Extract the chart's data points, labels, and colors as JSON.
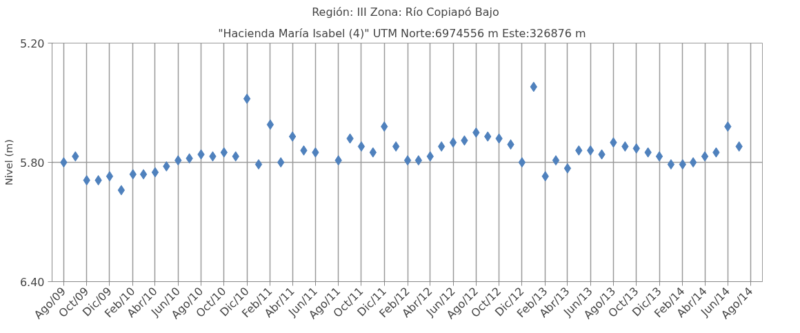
{
  "chart_data": {
    "type": "scatter",
    "title": "Región: III  Zona: Río Copiapó Bajo",
    "subtitle": "\"Hacienda María Isabel (4)\"  UTM Norte:6974556 m   Este:326876 m",
    "ylabel": "Nivel (m)",
    "x": [
      "2009-08",
      "2009-09",
      "2009-10",
      "2009-11",
      "2009-12",
      "2010-01",
      "2010-02",
      "2010-03",
      "2010-04",
      "2010-05",
      "2010-06",
      "2010-07",
      "2010-08",
      "2010-09",
      "2010-10",
      "2010-11",
      "2010-12",
      "2011-01",
      "2011-02",
      "2011-03",
      "2011-04",
      "2011-05",
      "2011-06",
      "2011-07",
      "2011-08",
      "2011-09",
      "2011-10",
      "2011-11",
      "2011-12",
      "2012-01",
      "2012-02",
      "2012-03",
      "2012-04",
      "2012-05",
      "2012-06",
      "2012-07",
      "2012-08",
      "2012-09",
      "2012-10",
      "2012-11",
      "2012-12",
      "2013-01",
      "2013-02",
      "2013-03",
      "2013-04",
      "2013-05",
      "2013-06",
      "2013-07",
      "2013-08",
      "2013-09",
      "2013-10",
      "2013-11",
      "2013-12",
      "2014-01",
      "2014-02",
      "2014-03",
      "2014-04",
      "2014-05",
      "2014-06",
      "2014-07"
    ],
    "values": [
      5.8,
      5.77,
      5.89,
      5.89,
      5.87,
      5.94,
      5.86,
      5.86,
      5.85,
      5.82,
      5.79,
      5.78,
      5.76,
      5.77,
      5.75,
      5.77,
      5.48,
      5.81,
      5.61,
      5.8,
      5.67,
      5.74,
      5.75,
      null,
      5.79,
      5.68,
      5.72,
      5.75,
      5.62,
      5.72,
      5.79,
      5.79,
      5.77,
      5.72,
      5.7,
      5.69,
      5.65,
      5.67,
      5.68,
      5.71,
      5.8,
      5.42,
      5.87,
      5.79,
      5.83,
      5.74,
      5.74,
      5.76,
      5.7,
      5.72,
      5.73,
      5.75,
      5.77,
      5.81,
      5.81,
      5.8,
      5.77,
      5.75,
      5.62,
      5.72
    ],
    "color": "#4f81bd",
    "marker": "diamond",
    "xlim": [
      "2009-07",
      "2014-09"
    ],
    "xticks": [
      {
        "value": "2009-08",
        "label": "Ago/09"
      },
      {
        "value": "2009-10",
        "label": "Oct/09"
      },
      {
        "value": "2009-12",
        "label": "Dic/09"
      },
      {
        "value": "2010-02",
        "label": "Feb/10"
      },
      {
        "value": "2010-04",
        "label": "Abr/10"
      },
      {
        "value": "2010-06",
        "label": "Jun/10"
      },
      {
        "value": "2010-08",
        "label": "Ago/10"
      },
      {
        "value": "2010-10",
        "label": "Oct/10"
      },
      {
        "value": "2010-12",
        "label": "Dic/10"
      },
      {
        "value": "2011-02",
        "label": "Feb/11"
      },
      {
        "value": "2011-04",
        "label": "Abr/11"
      },
      {
        "value": "2011-06",
        "label": "Jun/11"
      },
      {
        "value": "2011-08",
        "label": "Ago/11"
      },
      {
        "value": "2011-10",
        "label": "Oct/11"
      },
      {
        "value": "2011-12",
        "label": "Dic/11"
      },
      {
        "value": "2012-02",
        "label": "Feb/12"
      },
      {
        "value": "2012-04",
        "label": "Abr/12"
      },
      {
        "value": "2012-06",
        "label": "Jun/12"
      },
      {
        "value": "2012-08",
        "label": "Ago/12"
      },
      {
        "value": "2012-10",
        "label": "Oct/12"
      },
      {
        "value": "2012-12",
        "label": "Dic/12"
      },
      {
        "value": "2013-02",
        "label": "Feb/13"
      },
      {
        "value": "2013-04",
        "label": "Abr/13"
      },
      {
        "value": "2013-06",
        "label": "Jun/13"
      },
      {
        "value": "2013-08",
        "label": "Ago/13"
      },
      {
        "value": "2013-10",
        "label": "Oct/13"
      },
      {
        "value": "2013-12",
        "label": "Dic/13"
      },
      {
        "value": "2014-02",
        "label": "Feb/14"
      },
      {
        "value": "2014-04",
        "label": "Abr/14"
      },
      {
        "value": "2014-06",
        "label": "Jun/14"
      },
      {
        "value": "2014-08",
        "label": "Ago/14"
      }
    ],
    "ylim": [
      6.4,
      5.2
    ],
    "yticks": [
      {
        "value": 5.2,
        "label": "5.20"
      },
      {
        "value": 5.8,
        "label": "5.80"
      },
      {
        "value": 6.4,
        "label": "6.40"
      }
    ],
    "grid": true,
    "legend": false
  }
}
